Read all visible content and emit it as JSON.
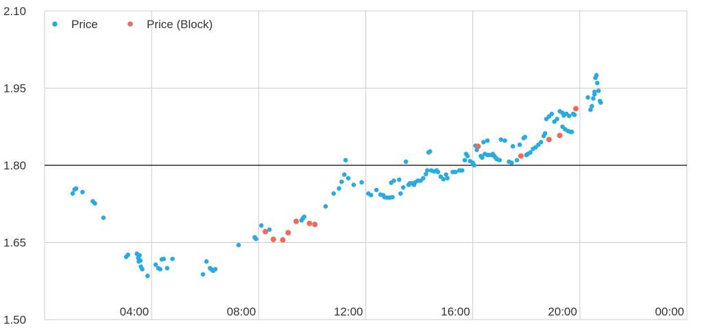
{
  "chart_data": {
    "type": "scatter",
    "title": "",
    "xlabel": "",
    "ylabel": "",
    "xlim": [
      0,
      24
    ],
    "ylim": [
      1.5,
      2.1
    ],
    "x_ticks": [
      4,
      8,
      12,
      16,
      20,
      24
    ],
    "x_tick_labels": [
      "04:00",
      "08:00",
      "12:00",
      "16:00",
      "20:00",
      "00:00"
    ],
    "y_ticks": [
      1.5,
      1.65,
      1.8,
      1.95,
      2.1
    ],
    "y_tick_labels": [
      "1.50",
      "1.65",
      "1.80",
      "1.95",
      "2.10"
    ],
    "grid": true,
    "legend_position": "top-left",
    "reference_line": {
      "y": 1.8,
      "color": "#000000"
    },
    "series": [
      {
        "name": "Price",
        "color": "#29abe2",
        "points": [
          [
            1.05,
            1.745
          ],
          [
            1.12,
            1.753
          ],
          [
            1.18,
            1.755
          ],
          [
            1.42,
            1.748
          ],
          [
            1.8,
            1.73
          ],
          [
            1.88,
            1.726
          ],
          [
            2.2,
            1.698
          ],
          [
            3.05,
            1.622
          ],
          [
            3.12,
            1.626
          ],
          [
            3.45,
            1.628
          ],
          [
            3.5,
            1.62
          ],
          [
            3.55,
            1.625
          ],
          [
            3.52,
            1.613
          ],
          [
            3.58,
            1.615
          ],
          [
            3.6,
            1.603
          ],
          [
            3.65,
            1.598
          ],
          [
            3.85,
            1.585
          ],
          [
            4.15,
            1.607
          ],
          [
            4.25,
            1.6
          ],
          [
            4.32,
            1.598
          ],
          [
            4.38,
            1.617
          ],
          [
            4.45,
            1.618
          ],
          [
            4.58,
            1.6
          ],
          [
            4.78,
            1.618
          ],
          [
            5.92,
            1.588
          ],
          [
            6.05,
            1.613
          ],
          [
            6.18,
            1.6
          ],
          [
            6.25,
            1.597
          ],
          [
            6.3,
            1.595
          ],
          [
            6.38,
            1.598
          ],
          [
            7.25,
            1.645
          ],
          [
            7.85,
            1.66
          ],
          [
            7.9,
            1.657
          ],
          [
            8.1,
            1.683
          ],
          [
            8.4,
            1.675
          ],
          [
            9.6,
            1.693
          ],
          [
            9.65,
            1.697
          ],
          [
            9.7,
            1.7
          ],
          [
            10.5,
            1.72
          ],
          [
            10.8,
            1.745
          ],
          [
            11.0,
            1.755
          ],
          [
            11.1,
            1.768
          ],
          [
            11.2,
            1.782
          ],
          [
            11.25,
            1.81
          ],
          [
            11.35,
            1.775
          ],
          [
            11.55,
            1.762
          ],
          [
            11.85,
            1.767
          ],
          [
            12.1,
            1.745
          ],
          [
            12.2,
            1.742
          ],
          [
            12.4,
            1.752
          ],
          [
            12.55,
            1.743
          ],
          [
            12.65,
            1.742
          ],
          [
            12.7,
            1.738
          ],
          [
            12.8,
            1.737
          ],
          [
            12.9,
            1.737
          ],
          [
            13.0,
            1.738
          ],
          [
            12.95,
            1.766
          ],
          [
            13.05,
            1.77
          ],
          [
            13.25,
            1.772
          ],
          [
            13.3,
            1.745
          ],
          [
            13.4,
            1.757
          ],
          [
            13.5,
            1.807
          ],
          [
            13.6,
            1.762
          ],
          [
            13.65,
            1.765
          ],
          [
            13.72,
            1.765
          ],
          [
            13.8,
            1.762
          ],
          [
            13.85,
            1.767
          ],
          [
            13.95,
            1.77
          ],
          [
            14.05,
            1.77
          ],
          [
            14.15,
            1.775
          ],
          [
            14.25,
            1.783
          ],
          [
            14.3,
            1.79
          ],
          [
            14.35,
            1.825
          ],
          [
            14.4,
            1.827
          ],
          [
            14.45,
            1.79
          ],
          [
            14.55,
            1.788
          ],
          [
            14.65,
            1.79
          ],
          [
            14.7,
            1.787
          ],
          [
            14.8,
            1.778
          ],
          [
            14.9,
            1.773
          ],
          [
            15.0,
            1.782
          ],
          [
            15.05,
            1.775
          ],
          [
            15.25,
            1.787
          ],
          [
            15.35,
            1.787
          ],
          [
            15.5,
            1.79
          ],
          [
            15.6,
            1.79
          ],
          [
            15.7,
            1.81
          ],
          [
            15.75,
            1.822
          ],
          [
            15.8,
            1.818
          ],
          [
            15.9,
            1.808
          ],
          [
            16.0,
            1.805
          ],
          [
            16.05,
            1.8
          ],
          [
            16.1,
            1.838
          ],
          [
            16.15,
            1.83
          ],
          [
            16.3,
            1.818
          ],
          [
            16.35,
            1.815
          ],
          [
            16.45,
            1.822
          ],
          [
            16.55,
            1.82
          ],
          [
            16.6,
            1.82
          ],
          [
            16.7,
            1.82
          ],
          [
            16.8,
            1.818
          ],
          [
            16.85,
            1.815
          ],
          [
            16.9,
            1.812
          ],
          [
            17.0,
            1.81
          ],
          [
            16.4,
            1.845
          ],
          [
            16.55,
            1.848
          ],
          [
            16.75,
            1.822
          ],
          [
            17.05,
            1.85
          ],
          [
            17.2,
            1.848
          ],
          [
            17.35,
            1.807
          ],
          [
            17.45,
            1.805
          ],
          [
            17.5,
            1.837
          ],
          [
            17.65,
            1.81
          ],
          [
            17.75,
            1.84
          ],
          [
            17.9,
            1.853
          ],
          [
            17.95,
            1.855
          ],
          [
            18.0,
            1.82
          ],
          [
            18.05,
            1.822
          ],
          [
            18.15,
            1.825
          ],
          [
            18.25,
            1.832
          ],
          [
            18.35,
            1.835
          ],
          [
            18.45,
            1.84
          ],
          [
            18.55,
            1.845
          ],
          [
            18.65,
            1.857
          ],
          [
            18.7,
            1.862
          ],
          [
            18.75,
            1.89
          ],
          [
            18.85,
            1.895
          ],
          [
            18.95,
            1.9
          ],
          [
            19.05,
            1.885
          ],
          [
            19.15,
            1.89
          ],
          [
            19.25,
            1.905
          ],
          [
            19.35,
            1.902
          ],
          [
            19.4,
            1.897
          ],
          [
            19.5,
            1.9
          ],
          [
            19.6,
            1.896
          ],
          [
            19.35,
            1.875
          ],
          [
            19.45,
            1.87
          ],
          [
            19.55,
            1.867
          ],
          [
            19.65,
            1.865
          ],
          [
            19.7,
            1.865
          ],
          [
            19.75,
            1.9
          ],
          [
            19.8,
            1.898
          ],
          [
            20.3,
            1.932
          ],
          [
            20.4,
            1.908
          ],
          [
            20.45,
            1.915
          ],
          [
            20.5,
            1.93
          ],
          [
            20.55,
            1.938
          ],
          [
            20.55,
            1.943
          ],
          [
            20.58,
            1.97
          ],
          [
            20.62,
            1.975
          ],
          [
            20.65,
            1.96
          ],
          [
            20.7,
            1.945
          ],
          [
            20.75,
            1.925
          ],
          [
            20.78,
            1.922
          ]
        ]
      },
      {
        "name": "Price (Block)",
        "color": "#ee6a5b",
        "points": [
          [
            8.25,
            1.671
          ],
          [
            8.55,
            1.656
          ],
          [
            8.9,
            1.655
          ],
          [
            9.1,
            1.669
          ],
          [
            9.4,
            1.691
          ],
          [
            9.9,
            1.687
          ],
          [
            10.1,
            1.685
          ],
          [
            16.2,
            1.837
          ],
          [
            17.8,
            1.818
          ],
          [
            18.85,
            1.85
          ],
          [
            19.25,
            1.858
          ],
          [
            19.85,
            1.91
          ]
        ]
      }
    ]
  }
}
